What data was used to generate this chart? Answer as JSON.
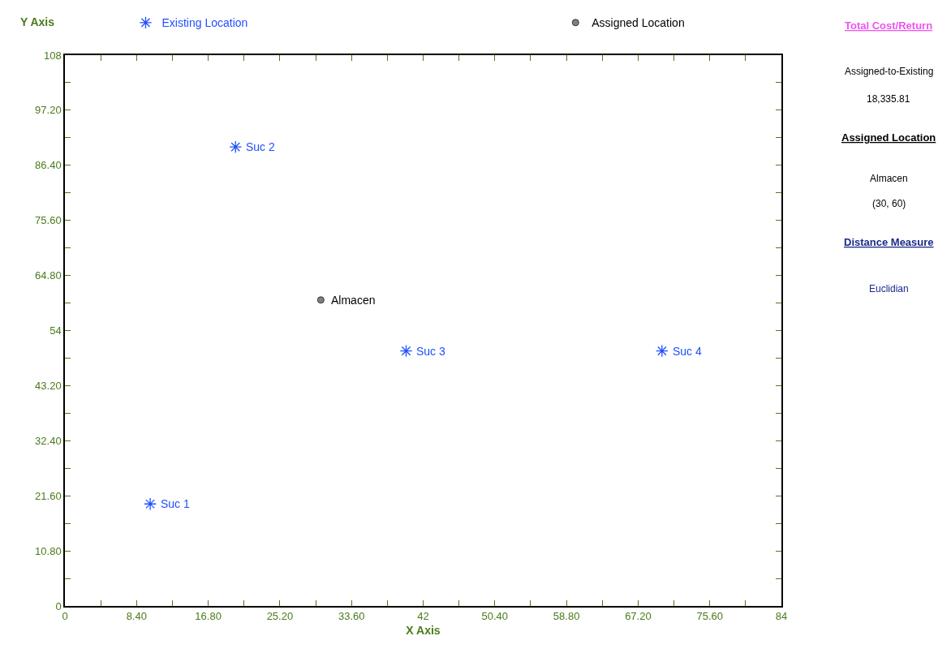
{
  "chart_data": {
    "type": "scatter",
    "xlabel": "X Axis",
    "ylabel": "Y Axis",
    "series": [
      {
        "name": "Existing Location",
        "color": "#1f4fff",
        "marker": "cross",
        "x": [
          10,
          20,
          40,
          70
        ],
        "values": [
          20,
          90,
          50,
          50
        ]
      },
      {
        "name": "Assigned Location",
        "color": "#808080",
        "marker": "circle",
        "x": [
          30
        ],
        "values": [
          60
        ]
      }
    ],
    "xlim": [
      0,
      84
    ],
    "ylim": [
      0,
      108
    ],
    "xticks": [
      0,
      {
        "value": 4.2,
        "label": null
      },
      {
        "value": 8.4,
        "label": "8.40"
      },
      {
        "value": 12.6,
        "label": null
      },
      {
        "value": 16.8,
        "label": "16.80"
      },
      {
        "value": 21,
        "label": null
      },
      {
        "value": 25.2,
        "label": "25.20"
      },
      {
        "value": 29.4,
        "label": null
      },
      {
        "value": 33.6,
        "label": "33.60"
      },
      {
        "value": 37.8,
        "label": null
      },
      42,
      {
        "value": 46.2,
        "label": null
      },
      {
        "value": 50.4,
        "label": "50.40"
      },
      {
        "value": 54.6,
        "label": null
      },
      {
        "value": 58.8,
        "label": "58.80"
      },
      {
        "value": 63,
        "label": null
      },
      {
        "value": 67.2,
        "label": "67.20"
      },
      {
        "value": 71.4,
        "label": null
      },
      {
        "value": 75.6,
        "label": "75.60"
      },
      {
        "value": 79.8,
        "label": null
      },
      84
    ],
    "yticks": [
      0,
      {
        "value": 5.4,
        "label": null
      },
      {
        "value": 10.8,
        "label": "10.80"
      },
      {
        "value": 16.2,
        "label": null
      },
      {
        "value": 21.6,
        "label": "21.60"
      },
      {
        "value": 27,
        "label": null
      },
      {
        "value": 32.4,
        "label": "32.40"
      },
      {
        "value": 37.8,
        "label": null
      },
      {
        "value": 43.2,
        "label": "43.20"
      },
      {
        "value": 48.6,
        "label": null
      },
      54,
      {
        "value": 59.4,
        "label": null
      },
      {
        "value": 64.8,
        "label": "64.80"
      },
      {
        "value": 70.2,
        "label": null
      },
      {
        "value": 75.6,
        "label": "75.60"
      },
      {
        "value": 81,
        "label": null
      },
      {
        "value": 86.4,
        "label": "86.40"
      },
      {
        "value": 91.8,
        "label": null
      },
      {
        "value": 97.2,
        "label": "97.20"
      },
      {
        "value": 102.6,
        "label": null
      },
      108
    ],
    "grid": false,
    "legend": "top",
    "annotations": [
      {
        "text": "Suc 1",
        "x": 10,
        "y": 20
      },
      {
        "text": "Suc 2",
        "x": 20,
        "y": 90
      },
      {
        "text": "Suc 3",
        "x": 40,
        "y": 50
      },
      {
        "text": "Suc 4",
        "x": 70,
        "y": 50
      },
      {
        "text": "Almacen",
        "x": 30,
        "y": 60
      },
      "Total Cost/Return",
      "Assigned-to-Existing",
      "18,335.81",
      "Assigned Location",
      "Almacen",
      "(30, 60)",
      "Distance Measure",
      "Euclidian"
    ]
  }
}
